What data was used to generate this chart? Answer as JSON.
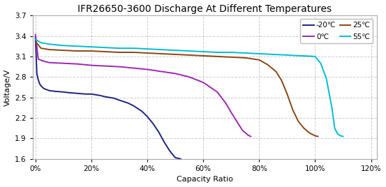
{
  "title": "IFR26650-3600 Discharge At Different Temperatures",
  "xlabel": "Capacity Ratio",
  "ylabel": "Voltage/V",
  "xlim": [
    -0.01,
    1.22
  ],
  "ylim": [
    1.6,
    3.7
  ],
  "yticks": [
    1.6,
    1.9,
    2.2,
    2.5,
    2.8,
    3.1,
    3.4,
    3.7
  ],
  "xticks": [
    0.0,
    0.2,
    0.4,
    0.6,
    0.8,
    1.0,
    1.2
  ],
  "background_color": "#ffffff",
  "plot_bg_color": "#ffffff",
  "series": [
    {
      "label": "-20℃",
      "color": "#1a237e",
      "x": [
        0.0,
        0.005,
        0.01,
        0.015,
        0.02,
        0.03,
        0.05,
        0.07,
        0.1,
        0.12,
        0.15,
        0.18,
        0.2,
        0.23,
        0.25,
        0.28,
        0.3,
        0.33,
        0.35,
        0.38,
        0.4,
        0.42,
        0.44,
        0.46,
        0.48,
        0.5,
        0.52
      ],
      "y": [
        3.38,
        2.85,
        2.76,
        2.7,
        2.67,
        2.63,
        2.6,
        2.59,
        2.58,
        2.57,
        2.56,
        2.55,
        2.55,
        2.53,
        2.51,
        2.49,
        2.46,
        2.42,
        2.38,
        2.3,
        2.22,
        2.12,
        2.0,
        1.85,
        1.72,
        1.62,
        1.6
      ]
    },
    {
      "label": "0℃",
      "color": "#9c27b0",
      "x": [
        0.0,
        0.01,
        0.03,
        0.05,
        0.1,
        0.15,
        0.2,
        0.25,
        0.3,
        0.35,
        0.4,
        0.45,
        0.5,
        0.55,
        0.6,
        0.65,
        0.68,
        0.7,
        0.72,
        0.74,
        0.76,
        0.77
      ],
      "y": [
        3.42,
        3.06,
        3.03,
        3.01,
        3.0,
        2.99,
        2.97,
        2.96,
        2.95,
        2.93,
        2.91,
        2.88,
        2.85,
        2.8,
        2.72,
        2.58,
        2.42,
        2.28,
        2.15,
        2.02,
        1.95,
        1.93
      ]
    },
    {
      "label": "25℃",
      "color": "#8b4513",
      "x": [
        0.0,
        0.02,
        0.05,
        0.1,
        0.15,
        0.2,
        0.25,
        0.3,
        0.35,
        0.4,
        0.45,
        0.5,
        0.55,
        0.6,
        0.65,
        0.7,
        0.75,
        0.8,
        0.83,
        0.86,
        0.88,
        0.9,
        0.92,
        0.94,
        0.96,
        0.98,
        1.0,
        1.01
      ],
      "y": [
        3.32,
        3.22,
        3.2,
        3.19,
        3.18,
        3.18,
        3.17,
        3.16,
        3.16,
        3.15,
        3.14,
        3.13,
        3.12,
        3.11,
        3.1,
        3.09,
        3.08,
        3.05,
        2.98,
        2.88,
        2.75,
        2.55,
        2.32,
        2.15,
        2.05,
        1.98,
        1.94,
        1.93
      ]
    },
    {
      "label": "55℃",
      "color": "#00bcd4",
      "x": [
        0.0,
        0.02,
        0.05,
        0.1,
        0.15,
        0.2,
        0.25,
        0.3,
        0.35,
        0.4,
        0.45,
        0.5,
        0.55,
        0.6,
        0.65,
        0.7,
        0.75,
        0.8,
        0.85,
        0.9,
        0.95,
        1.0,
        1.02,
        1.04,
        1.06,
        1.07,
        1.08,
        1.09,
        1.1
      ],
      "y": [
        3.35,
        3.3,
        3.28,
        3.26,
        3.25,
        3.24,
        3.23,
        3.22,
        3.22,
        3.21,
        3.2,
        3.19,
        3.18,
        3.17,
        3.16,
        3.16,
        3.15,
        3.14,
        3.13,
        3.12,
        3.11,
        3.1,
        3.0,
        2.78,
        2.35,
        2.05,
        1.97,
        1.94,
        1.93
      ]
    }
  ],
  "legend": {
    "ncol": 2,
    "fontsize": 7.5,
    "frameon": true
  },
  "grid": {
    "linestyle": "--",
    "color": "#aaaaaa",
    "alpha": 0.6
  },
  "title_fontsize": 10,
  "axis_label_fontsize": 8,
  "tick_fontsize": 7.5,
  "linewidth": 1.4
}
